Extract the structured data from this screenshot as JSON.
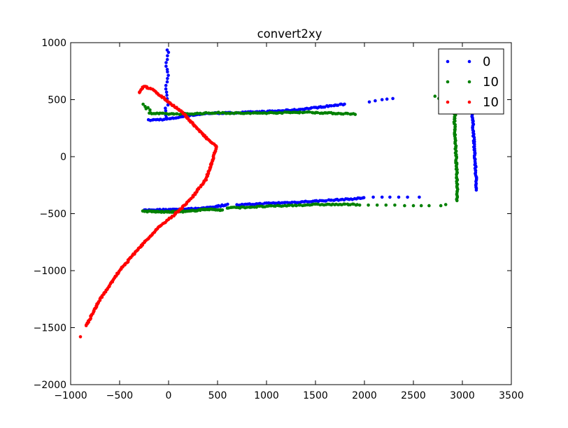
{
  "chart_data": {
    "type": "scatter",
    "title": "convert2xy",
    "xlabel": "",
    "ylabel": "",
    "xlim": [
      -1000,
      3500
    ],
    "ylim": [
      -2000,
      1000
    ],
    "xticks": [
      -1000,
      -500,
      0,
      500,
      1000,
      1500,
      2000,
      2500,
      3000,
      3500
    ],
    "yticks": [
      -2000,
      -1500,
      -1000,
      -500,
      0,
      500,
      1000
    ],
    "xtick_labels": [
      "−1000",
      "−500",
      "0",
      "500",
      "1000",
      "1500",
      "2000",
      "2500",
      "3000",
      "3500"
    ],
    "ytick_labels": [
      "−2000",
      "−1500",
      "−1000",
      "−500",
      "0",
      "500",
      "1000"
    ],
    "grid": false,
    "legend_position": "top-right",
    "series": [
      {
        "name": "0",
        "color": "#0000ff",
        "segments": [
          {
            "kind": "line",
            "points": [
              [
                -200,
                320
              ],
              [
                0,
                330
              ],
              [
                200,
                360
              ],
              [
                400,
                380
              ],
              [
                700,
                385
              ],
              [
                1000,
                395
              ],
              [
                1300,
                410
              ],
              [
                1600,
                440
              ],
              [
                1800,
                460
              ]
            ],
            "count": 120
          },
          {
            "kind": "scatter",
            "points": [
              [
                2050,
                480
              ],
              [
                2110,
                490
              ],
              [
                2180,
                500
              ],
              [
                2230,
                505
              ],
              [
                2290,
                510
              ]
            ]
          },
          {
            "kind": "line",
            "points": [
              [
                -10,
                940
              ],
              [
                5,
                920
              ],
              [
                -15,
                880
              ],
              [
                -25,
                820
              ],
              [
                -10,
                760
              ],
              [
                -5,
                700
              ],
              [
                -30,
                620
              ],
              [
                -20,
                560
              ],
              [
                -15,
                500
              ],
              [
                -10,
                440
              ],
              [
                -40,
                420
              ],
              [
                -30,
                380
              ],
              [
                -20,
                340
              ]
            ],
            "count": 22
          },
          {
            "kind": "line",
            "points": [
              [
                -250,
                -470
              ],
              [
                0,
                -465
              ],
              [
                200,
                -460
              ],
              [
                400,
                -450
              ],
              [
                600,
                -420
              ]
            ],
            "count": 80
          },
          {
            "kind": "line",
            "points": [
              [
                700,
                -425
              ],
              [
                1000,
                -410
              ],
              [
                1300,
                -400
              ],
              [
                1600,
                -385
              ],
              [
                1900,
                -370
              ],
              [
                2000,
                -360
              ]
            ],
            "count": 75
          },
          {
            "kind": "scatter",
            "points": [
              [
                2090,
                -355
              ],
              [
                2180,
                -355
              ],
              [
                2260,
                -355
              ],
              [
                2350,
                -355
              ],
              [
                2440,
                -355
              ],
              [
                2560,
                -355
              ]
            ]
          },
          {
            "kind": "line",
            "points": [
              [
                3100,
                400
              ],
              [
                3110,
                250
              ],
              [
                3120,
                100
              ],
              [
                3130,
                -50
              ],
              [
                3140,
                -200
              ],
              [
                3145,
                -290
              ]
            ],
            "count": 60
          }
        ]
      },
      {
        "name": "10",
        "color": "#008000",
        "segments": [
          {
            "kind": "line",
            "points": [
              [
                -200,
                380
              ],
              [
                0,
                375
              ],
              [
                200,
                375
              ],
              [
                500,
                385
              ],
              [
                800,
                380
              ],
              [
                1100,
                385
              ],
              [
                1400,
                390
              ],
              [
                1700,
                380
              ],
              [
                1900,
                375
              ]
            ],
            "count": 130
          },
          {
            "kind": "scatter",
            "points": [
              [
                -260,
                460
              ],
              [
                -240,
                440
              ],
              [
                -230,
                420
              ],
              [
                -210,
                430
              ],
              [
                -190,
                410
              ]
            ]
          },
          {
            "kind": "line",
            "points": [
              [
                -260,
                -480
              ],
              [
                0,
                -485
              ],
              [
                200,
                -480
              ],
              [
                400,
                -460
              ],
              [
                550,
                -470
              ]
            ],
            "count": 85
          },
          {
            "kind": "line",
            "points": [
              [
                600,
                -450
              ],
              [
                900,
                -440
              ],
              [
                1200,
                -430
              ],
              [
                1500,
                -420
              ],
              [
                1800,
                -420
              ],
              [
                1950,
                -420
              ]
            ],
            "count": 75
          },
          {
            "kind": "scatter",
            "points": [
              [
                2040,
                -425
              ],
              [
                2130,
                -425
              ],
              [
                2220,
                -425
              ],
              [
                2310,
                -425
              ],
              [
                2410,
                -430
              ],
              [
                2500,
                -430
              ],
              [
                2580,
                -430
              ],
              [
                2660,
                -430
              ],
              [
                2780,
                -430
              ],
              [
                2830,
                -420
              ]
            ]
          },
          {
            "kind": "scatter",
            "points": [
              [
                2720,
                530
              ],
              [
                2760,
                510
              ],
              [
                2800,
                500
              ]
            ]
          },
          {
            "kind": "line",
            "points": [
              [
                2930,
                450
              ],
              [
                2920,
                300
              ],
              [
                2930,
                100
              ],
              [
                2940,
                -100
              ],
              [
                2950,
                -300
              ],
              [
                2945,
                -390
              ]
            ],
            "count": 75
          }
        ]
      },
      {
        "name": "10",
        "color": "#ff0000",
        "segments": [
          {
            "kind": "line",
            "points": [
              [
                -300,
                560
              ],
              [
                -250,
                620
              ],
              [
                -150,
                580
              ],
              [
                0,
                480
              ],
              [
                150,
                380
              ],
              [
                300,
                240
              ],
              [
                400,
                150
              ],
              [
                490,
                90
              ],
              [
                450,
                -30
              ],
              [
                380,
                -200
              ],
              [
                250,
                -350
              ],
              [
                100,
                -480
              ],
              [
                -100,
                -620
              ],
              [
                -300,
                -800
              ],
              [
                -500,
                -1000
              ],
              [
                -700,
                -1250
              ],
              [
                -840,
                -1480
              ]
            ],
            "count": 300
          },
          {
            "kind": "scatter",
            "points": [
              [
                -900,
                -1580
              ]
            ]
          }
        ]
      }
    ]
  }
}
